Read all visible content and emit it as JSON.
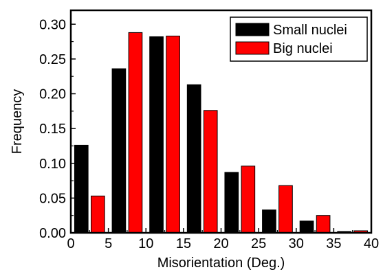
{
  "chart_data": {
    "type": "bar",
    "xlabel": "Misorientation (Deg.)",
    "ylabel": "Frequency",
    "xlim": [
      0,
      40
    ],
    "ylim": [
      0,
      0.32
    ],
    "x_ticks": [
      "0",
      "5",
      "10",
      "15",
      "20",
      "25",
      "30",
      "35",
      "40"
    ],
    "y_ticks": [
      "0.00",
      "0.05",
      "0.10",
      "0.15",
      "0.20",
      "0.25",
      "0.30"
    ],
    "bin_width": 5,
    "bin_starts": [
      0,
      5,
      10,
      15,
      20,
      25,
      30,
      35
    ],
    "legend_position": "top-right",
    "series": [
      {
        "name": "Small nuclei",
        "color": "#000000",
        "values": [
          0.126,
          0.236,
          0.282,
          0.213,
          0.087,
          0.033,
          0.017,
          0.002
        ]
      },
      {
        "name": "Big nuclei",
        "color": "#ff0000",
        "values": [
          0.053,
          0.288,
          0.283,
          0.176,
          0.096,
          0.068,
          0.025,
          0.003
        ]
      }
    ]
  }
}
